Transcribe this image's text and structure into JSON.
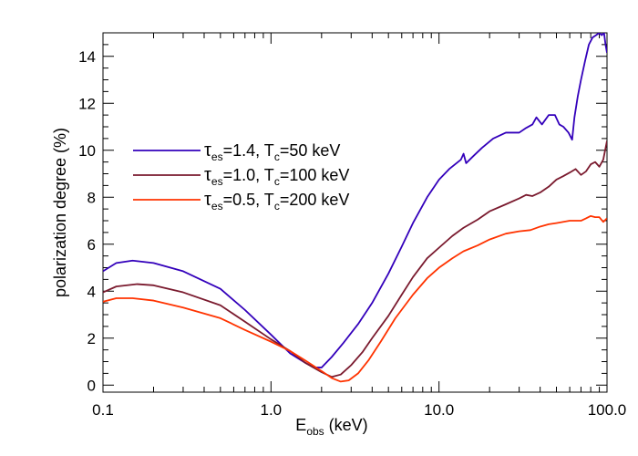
{
  "chart_data": {
    "type": "line",
    "title": "",
    "xlabel_main": "E",
    "xlabel_sub": "obs",
    "xlabel_unit": " (keV)",
    "ylabel": "polarization degree (%)",
    "xscale": "log",
    "xlim": [
      0.1,
      100.0
    ],
    "ylim": [
      -0.3,
      15.0
    ],
    "xticks": [
      {
        "value": 0.1,
        "label": "0.1"
      },
      {
        "value": 1.0,
        "label": "1.0"
      },
      {
        "value": 10.0,
        "label": "10.0"
      },
      {
        "value": 100.0,
        "label": "100.0"
      }
    ],
    "yticks": [
      0,
      2,
      4,
      6,
      8,
      10,
      12,
      14
    ],
    "grid": false,
    "legend_placement": "upper-left",
    "series": [
      {
        "legend_tau": "τ",
        "legend_tau_sub": "es",
        "legend_mid": "=1.4, T",
        "legend_t_sub": "c",
        "legend_end": "=50 keV",
        "color": "#3300bb",
        "x": [
          0.1,
          0.12,
          0.15,
          0.2,
          0.3,
          0.5,
          0.7,
          1.0,
          1.3,
          1.6,
          1.8,
          2.0,
          2.3,
          2.7,
          3.3,
          4.0,
          5.0,
          6.0,
          7.0,
          8.5,
          10.0,
          11.5,
          13.5,
          14.0,
          14.5,
          16.0,
          18.0,
          21.0,
          25.0,
          30.0,
          33.0,
          36.0,
          38.0,
          41.0,
          45.0,
          49.0,
          52.0,
          55.0,
          59.0,
          62.0,
          64.0,
          67.0,
          70.0,
          74.0,
          78.0,
          82.0,
          86.0,
          90.0,
          93.0,
          96.0,
          98.0,
          100.0
        ],
        "y": [
          4.85,
          5.2,
          5.3,
          5.2,
          4.85,
          4.1,
          3.2,
          2.15,
          1.35,
          0.95,
          0.75,
          0.75,
          1.2,
          1.8,
          2.6,
          3.5,
          4.75,
          5.9,
          6.9,
          8.0,
          8.75,
          9.2,
          9.6,
          9.85,
          9.45,
          9.75,
          10.1,
          10.5,
          10.75,
          10.75,
          10.95,
          11.1,
          11.4,
          11.1,
          11.5,
          11.5,
          11.1,
          11.0,
          10.75,
          10.45,
          11.4,
          12.3,
          13.0,
          13.8,
          14.5,
          14.8,
          14.9,
          15.0,
          14.9,
          15.0,
          14.5,
          14.15
        ]
      },
      {
        "legend_tau": "τ",
        "legend_tau_sub": "es",
        "legend_mid": "=1.0, T",
        "legend_t_sub": "c",
        "legend_end": "=100 keV",
        "color": "#7a1a2e",
        "x": [
          0.1,
          0.12,
          0.16,
          0.2,
          0.3,
          0.5,
          0.7,
          1.0,
          1.3,
          1.6,
          2.0,
          2.3,
          2.6,
          3.0,
          3.5,
          4.0,
          5.0,
          6.0,
          7.0,
          8.5,
          10.0,
          12.0,
          14.0,
          17.0,
          20.0,
          25.0,
          30.0,
          33.0,
          36.0,
          40.0,
          45.0,
          50.0,
          55.0,
          60.0,
          65.0,
          70.0,
          75.0,
          80.0,
          85.0,
          90.0,
          95.0,
          100.0
        ],
        "y": [
          3.95,
          4.2,
          4.3,
          4.25,
          3.95,
          3.4,
          2.7,
          1.95,
          1.45,
          0.95,
          0.55,
          0.35,
          0.45,
          0.85,
          1.4,
          2.0,
          2.95,
          3.85,
          4.6,
          5.4,
          5.85,
          6.35,
          6.7,
          7.05,
          7.4,
          7.7,
          7.95,
          8.1,
          8.05,
          8.2,
          8.45,
          8.75,
          8.9,
          9.05,
          9.2,
          8.95,
          9.1,
          9.4,
          9.5,
          9.3,
          9.6,
          10.4
        ]
      },
      {
        "legend_tau": "τ",
        "legend_tau_sub": "es",
        "legend_mid": "=0.5, T",
        "legend_t_sub": "c",
        "legend_end": "=200 keV",
        "color": "#ff3300",
        "x": [
          0.1,
          0.12,
          0.15,
          0.2,
          0.3,
          0.5,
          0.7,
          1.0,
          1.3,
          1.6,
          2.0,
          2.3,
          2.6,
          2.9,
          3.3,
          3.8,
          4.5,
          5.5,
          7.0,
          8.5,
          10.0,
          12.0,
          14.0,
          17.0,
          20.0,
          25.0,
          30.0,
          35.0,
          40.0,
          45.0,
          50.0,
          55.0,
          60.0,
          65.0,
          70.0,
          75.0,
          80.0,
          85.0,
          90.0,
          95.0,
          100.0
        ],
        "y": [
          3.55,
          3.7,
          3.7,
          3.6,
          3.3,
          2.85,
          2.35,
          1.85,
          1.45,
          1.05,
          0.6,
          0.3,
          0.15,
          0.2,
          0.5,
          1.05,
          1.85,
          2.85,
          3.85,
          4.55,
          5.0,
          5.4,
          5.7,
          5.95,
          6.2,
          6.45,
          6.55,
          6.6,
          6.75,
          6.85,
          6.9,
          6.95,
          7.0,
          7.0,
          7.0,
          7.1,
          7.2,
          7.15,
          7.15,
          6.95,
          7.1
        ]
      }
    ]
  }
}
